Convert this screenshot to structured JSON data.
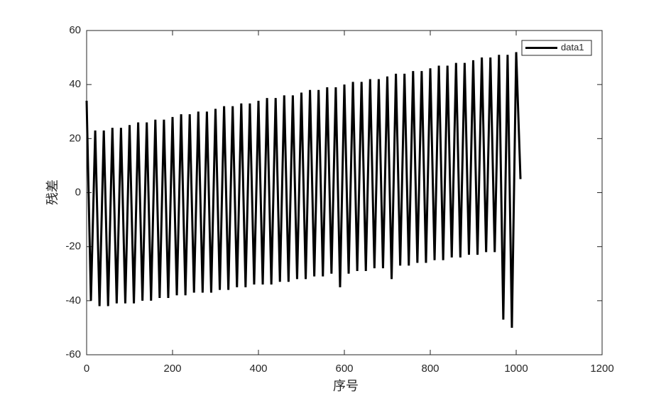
{
  "chart_data": {
    "type": "line",
    "x_label": "序号",
    "y_label": "残差",
    "xlim": [
      0,
      1200
    ],
    "ylim": [
      -60,
      60
    ],
    "xticks": [
      0,
      200,
      400,
      600,
      800,
      1000,
      1200
    ],
    "yticks": [
      -60,
      -40,
      -20,
      0,
      20,
      40,
      60
    ],
    "legend": "upper-right",
    "x": [
      0,
      10,
      20,
      30,
      40,
      50,
      60,
      70,
      80,
      90,
      100,
      110,
      120,
      130,
      140,
      150,
      160,
      170,
      180,
      190,
      200,
      210,
      220,
      230,
      240,
      250,
      260,
      270,
      280,
      290,
      300,
      310,
      320,
      330,
      340,
      350,
      360,
      370,
      380,
      390,
      400,
      410,
      420,
      430,
      440,
      450,
      460,
      470,
      480,
      490,
      500,
      510,
      520,
      530,
      540,
      550,
      560,
      570,
      580,
      590,
      600,
      610,
      620,
      630,
      640,
      650,
      660,
      670,
      680,
      690,
      700,
      710,
      720,
      730,
      740,
      750,
      760,
      770,
      780,
      790,
      800,
      810,
      820,
      830,
      840,
      850,
      860,
      870,
      880,
      890,
      900,
      910,
      920,
      930,
      940,
      950,
      960,
      970,
      980,
      990,
      1000,
      1010
    ],
    "series": [
      {
        "name": "data1",
        "color": "#000000",
        "values": [
          34,
          -40,
          23,
          -42,
          23,
          -42,
          24,
          -41,
          24,
          -41,
          25,
          -41,
          26,
          -40,
          26,
          -40,
          27,
          -39,
          27,
          -39,
          28,
          -38,
          29,
          -38,
          29,
          -37,
          30,
          -37,
          30,
          -37,
          31,
          -36,
          32,
          -36,
          32,
          -35,
          33,
          -35,
          33,
          -34,
          34,
          -34,
          35,
          -34,
          35,
          -33,
          36,
          -33,
          36,
          -32,
          37,
          -32,
          38,
          -31,
          38,
          -31,
          39,
          -30,
          39,
          -35,
          40,
          -30,
          41,
          -29,
          41,
          -29,
          42,
          -28,
          42,
          -28,
          43,
          -32,
          44,
          -27,
          44,
          -27,
          45,
          -26,
          45,
          -26,
          46,
          -25,
          47,
          -25,
          47,
          -24,
          48,
          -24,
          48,
          -23,
          49,
          -23,
          50,
          -22,
          50,
          -22,
          51,
          -47,
          51,
          -50,
          52,
          5
        ]
      }
    ]
  }
}
